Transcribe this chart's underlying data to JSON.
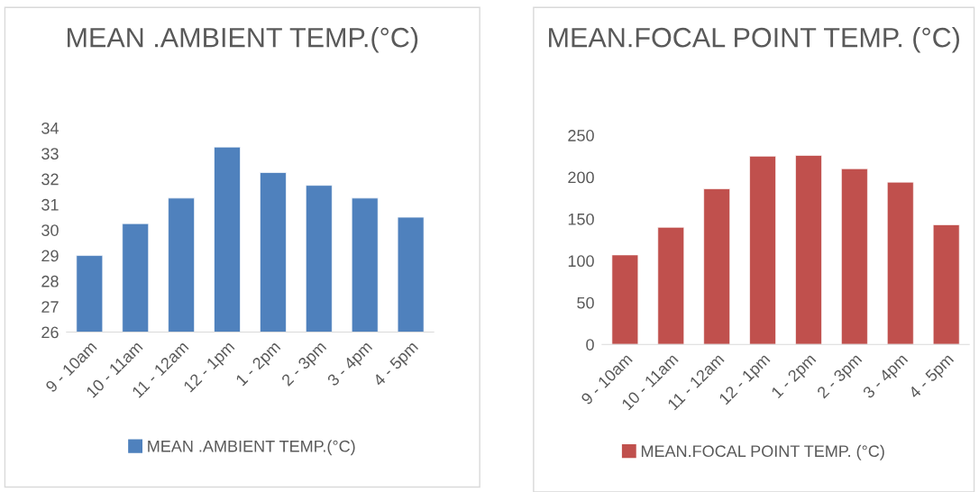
{
  "chart_data": [
    {
      "type": "bar",
      "title": "MEAN .AMBIENT TEMP.(°C)",
      "categories": [
        "9 - 10am",
        "10 - 11am",
        "11 - 12am",
        "12 - 1pm",
        "1 - 2pm",
        "2 - 3pm",
        "3 - 4pm",
        "4 - 5pm"
      ],
      "series": [
        {
          "name": "MEAN .AMBIENT TEMP.(°C)",
          "color": "#4f81bd",
          "values": [
            29.0,
            30.25,
            31.25,
            33.25,
            32.25,
            31.75,
            31.25,
            30.5
          ]
        }
      ],
      "ylim": [
        26,
        34
      ],
      "yticks": [
        26,
        27,
        28,
        29,
        30,
        31,
        32,
        33,
        34
      ],
      "grid": false,
      "legend": "bottom"
    },
    {
      "type": "bar",
      "title": "MEAN.FOCAL POINT TEMP. (°C)",
      "categories": [
        "9 - 10am",
        "10 - 11am",
        "11 - 12am",
        "12 - 1pm",
        "1 - 2pm",
        "2 - 3pm",
        "3 - 4pm",
        "4 - 5pm"
      ],
      "series": [
        {
          "name": "MEAN.FOCAL POINT TEMP. (°C)",
          "color": "#c0504d",
          "values": [
            107,
            140,
            186,
            225,
            226,
            210,
            194,
            143
          ]
        }
      ],
      "ylim": [
        0,
        250
      ],
      "yticks": [
        0,
        50,
        100,
        150,
        200,
        250
      ],
      "grid": false,
      "legend": "bottom"
    }
  ]
}
